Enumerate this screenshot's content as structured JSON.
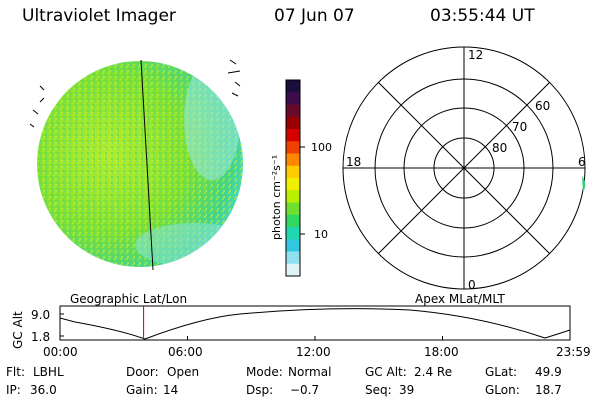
{
  "header": {
    "title": "Ultraviolet Imager",
    "date": "07 Jun 07",
    "time": "03:55:44 UT"
  },
  "colorbar": {
    "unit_label": "photon cm⁻²s⁻¹",
    "tick_labels": [
      "100",
      "10"
    ],
    "colors": [
      "#1a0f3a",
      "#3d0a4a",
      "#6a0a2a",
      "#9a0000",
      "#d40000",
      "#f04000",
      "#ff8800",
      "#ffcc00",
      "#f0f000",
      "#b8f000",
      "#70e030",
      "#30d860",
      "#20d8b0",
      "#30c8e0",
      "#90e0f0",
      "#e0f4f8"
    ]
  },
  "polar": {
    "top_label": "12",
    "bottom_label": "0",
    "left_label": "18",
    "right_label": "6",
    "ring_labels": [
      "60",
      "70",
      "80"
    ]
  },
  "panel_labels": {
    "geo": "Geographic Lat/Lon",
    "apex": "Apex MLat/MLT"
  },
  "altitude_plot": {
    "ylabel": "GC Alt",
    "y_ticks": [
      "9.0",
      "1.8"
    ],
    "x_ticks": [
      "00:00",
      "06:00",
      "12:00",
      "18:00",
      "23:59"
    ],
    "current_time_fraction": 0.164
  },
  "info": {
    "row1": [
      {
        "key": "Flt:",
        "val": "LBHL"
      },
      {
        "key": "Door:",
        "val": "Open"
      },
      {
        "key": "Mode:",
        "val": "Normal"
      },
      {
        "key": "GC Alt:",
        "val": "2.4 Re"
      },
      {
        "key": "GLat:",
        "val": "49.9"
      }
    ],
    "row2": [
      {
        "key": "IP:",
        "val": "36.0"
      },
      {
        "key": "Gain:",
        "val": "14"
      },
      {
        "key": "Dsp:",
        "val": "−0.7"
      },
      {
        "key": "Seq:",
        "val": "39"
      },
      {
        "key": "GLon:",
        "val": "18.7"
      }
    ]
  }
}
